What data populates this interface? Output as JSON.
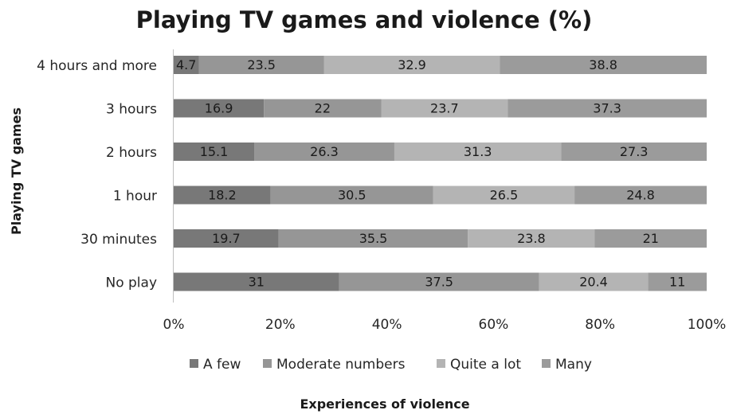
{
  "chart_data": {
    "type": "bar",
    "orientation": "horizontal",
    "stacked": "percent",
    "title": "Playing TV games and violence (%)",
    "xlabel": "Experiences of violence",
    "ylabel": "Playing TV games",
    "categories": [
      "4 hours and more",
      "3 hours",
      "2 hours",
      "1 hour",
      "30 minutes",
      "No play"
    ],
    "series": [
      {
        "name": "A few",
        "values": [
          4.7,
          16.9,
          15.1,
          18.2,
          19.7,
          31
        ],
        "color": "#787878"
      },
      {
        "name": "Moderate numbers",
        "values": [
          23.5,
          22,
          26.3,
          30.5,
          35.5,
          37.5
        ],
        "color": "#969696"
      },
      {
        "name": "Quite a lot",
        "values": [
          32.9,
          23.7,
          31.3,
          26.5,
          23.8,
          20.4
        ],
        "color": "#b4b4b4"
      },
      {
        "name": "Many",
        "values": [
          38.8,
          37.3,
          27.3,
          24.8,
          21,
          11
        ],
        "color": "#9b9b9b"
      }
    ],
    "xlim": [
      0,
      100
    ],
    "xticks": [
      "0%",
      "20%",
      "40%",
      "60%",
      "80%",
      "100%"
    ],
    "grid": false,
    "legend": "bottom"
  }
}
